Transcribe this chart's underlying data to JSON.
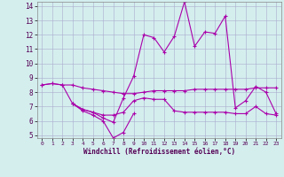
{
  "xlabel": "Windchill (Refroidissement éolien,°C)",
  "bg_color": "#d4eeee",
  "grid_color": "#aaaacc",
  "line_color": "#aa00aa",
  "x_hours": [
    0,
    1,
    2,
    3,
    4,
    5,
    6,
    7,
    8,
    9,
    10,
    11,
    12,
    13,
    14,
    15,
    16,
    17,
    18,
    19,
    20,
    21,
    22,
    23
  ],
  "series1": [
    8.5,
    8.6,
    8.5,
    8.5,
    8.3,
    8.2,
    8.1,
    8.0,
    7.9,
    7.9,
    8.0,
    8.1,
    8.1,
    8.1,
    8.1,
    8.2,
    8.2,
    8.2,
    8.2,
    8.2,
    8.2,
    8.3,
    8.3,
    8.3
  ],
  "series2": [
    8.5,
    8.6,
    8.5,
    7.2,
    6.8,
    6.6,
    6.2,
    5.9,
    7.6,
    9.1,
    12.0,
    11.8,
    10.8,
    11.9,
    14.3,
    11.2,
    12.2,
    12.1,
    13.3,
    6.9,
    7.4,
    8.4,
    8.0,
    6.5
  ],
  "series3_x": [
    3,
    4,
    5,
    6,
    7,
    8,
    9
  ],
  "series3_y": [
    7.2,
    6.7,
    6.4,
    6.0,
    4.8,
    5.2,
    6.5
  ],
  "series4_x": [
    3,
    4,
    5,
    6,
    7,
    8,
    9,
    10,
    11,
    12,
    13,
    14,
    15,
    16,
    17,
    18,
    19,
    20,
    21,
    22,
    23
  ],
  "series4_y": [
    7.2,
    6.8,
    6.6,
    6.4,
    6.4,
    6.6,
    7.4,
    7.6,
    7.5,
    7.5,
    6.7,
    6.6,
    6.6,
    6.6,
    6.6,
    6.6,
    6.5,
    6.5,
    7.0,
    6.5,
    6.4
  ],
  "ylim": [
    5,
    14
  ],
  "xlim": [
    0,
    23
  ]
}
